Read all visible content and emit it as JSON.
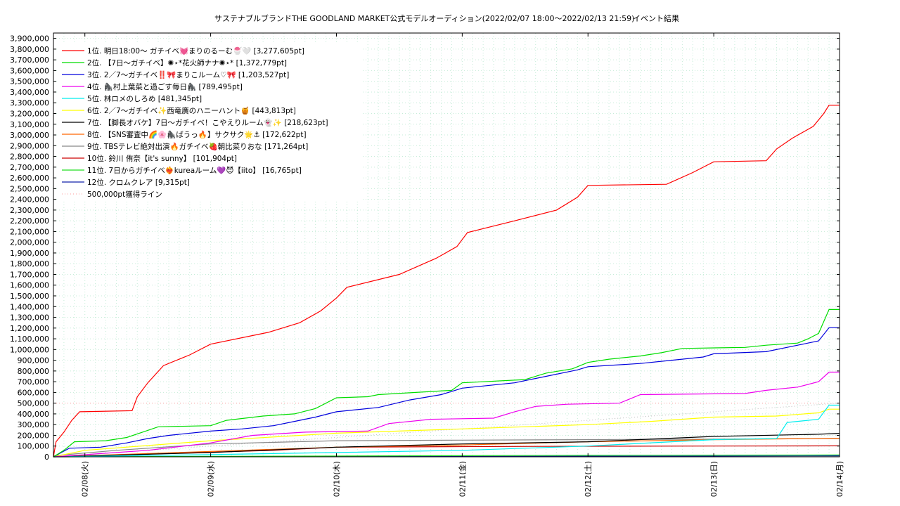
{
  "chart_data": {
    "type": "line",
    "title": "サステナブルブランドTHE GOODLAND MARKET公式モデルオーディション(2022/02/07 18:00〜2022/02/13 21:59)",
    "subtitle": "イベント結果",
    "ylim": [
      0,
      3950000
    ],
    "y_ticks": [
      "0",
      "100,000",
      "200,000",
      "300,000",
      "400,000",
      "500,000",
      "600,000",
      "700,000",
      "800,000",
      "900,000",
      "1,000,000",
      "1,100,000",
      "1,200,000",
      "1,300,000",
      "1,400,000",
      "1,500,000",
      "1,600,000",
      "1,700,000",
      "1,800,000",
      "1,900,000",
      "2,000,000",
      "2,100,000",
      "2,200,000",
      "2,300,000",
      "2,400,000",
      "2,500,000",
      "2,600,000",
      "2,700,000",
      "2,800,000",
      "2,900,000",
      "3,000,000",
      "3,100,000",
      "3,200,000",
      "3,300,000",
      "3,400,000",
      "3,500,000",
      "3,600,000",
      "3,700,000",
      "3,800,000",
      "3,900,000"
    ],
    "x_range": [
      "2022-02-07T18:00",
      "2022-02-14T00:00"
    ],
    "x_ticks": [
      {
        "at": "2022-02-08T00:00",
        "label": "02/08(火)"
      },
      {
        "at": "2022-02-09T00:00",
        "label": "02/09(水)"
      },
      {
        "at": "2022-02-10T00:00",
        "label": "02/10(木)"
      },
      {
        "at": "2022-02-11T00:00",
        "label": "02/11(金)"
      },
      {
        "at": "2022-02-12T00:00",
        "label": "02/12(土)"
      },
      {
        "at": "2022-02-13T00:00",
        "label": "02/13(日)"
      },
      {
        "at": "2022-02-14T00:00",
        "label": "02/14(月)"
      }
    ],
    "grid": true,
    "legend_position": "top-left",
    "series": [
      {
        "name": "1位. 明日18:00〜 ガチイベ💓まりのるーむ🍧🤍 [3,277,605pt]",
        "color": "#ff0000",
        "points": [
          [
            "2022-02-07T18:00",
            0
          ],
          [
            "2022-02-07T18:30",
            140000
          ],
          [
            "2022-02-07T20:00",
            230000
          ],
          [
            "2022-02-07T21:30",
            340000
          ],
          [
            "2022-02-07T23:00",
            420000
          ],
          [
            "2022-02-08T09:00",
            430000
          ],
          [
            "2022-02-08T10:00",
            560000
          ],
          [
            "2022-02-08T12:00",
            690000
          ],
          [
            "2022-02-08T15:00",
            850000
          ],
          [
            "2022-02-08T20:00",
            950000
          ],
          [
            "2022-02-09T00:00",
            1050000
          ],
          [
            "2022-02-09T11:00",
            1160000
          ],
          [
            "2022-02-09T17:00",
            1250000
          ],
          [
            "2022-02-09T21:00",
            1360000
          ],
          [
            "2022-02-10T00:00",
            1480000
          ],
          [
            "2022-02-10T02:00",
            1580000
          ],
          [
            "2022-02-10T12:00",
            1700000
          ],
          [
            "2022-02-10T19:00",
            1850000
          ],
          [
            "2022-02-10T23:00",
            1960000
          ],
          [
            "2022-02-11T01:00",
            2090000
          ],
          [
            "2022-02-11T10:00",
            2200000
          ],
          [
            "2022-02-11T18:00",
            2300000
          ],
          [
            "2022-02-11T22:00",
            2420000
          ],
          [
            "2022-02-12T00:00",
            2530000
          ],
          [
            "2022-02-12T15:00",
            2540000
          ],
          [
            "2022-02-12T20:00",
            2650000
          ],
          [
            "2022-02-13T00:00",
            2750000
          ],
          [
            "2022-02-13T10:00",
            2760000
          ],
          [
            "2022-02-13T12:00",
            2870000
          ],
          [
            "2022-02-13T15:00",
            2970000
          ],
          [
            "2022-02-13T19:00",
            3080000
          ],
          [
            "2022-02-13T21:00",
            3200000
          ],
          [
            "2022-02-13T22:00",
            3277605
          ],
          [
            "2022-02-14T00:00",
            3277605
          ]
        ]
      },
      {
        "name": "2位. 【7日〜ガチイベ】✺⋆*花火師ナナ✺⋆* [1,372,779pt]",
        "color": "#00dd00",
        "points": [
          [
            "2022-02-07T18:00",
            0
          ],
          [
            "2022-02-07T20:00",
            60000
          ],
          [
            "2022-02-07T22:00",
            140000
          ],
          [
            "2022-02-08T04:00",
            150000
          ],
          [
            "2022-02-08T08:00",
            180000
          ],
          [
            "2022-02-08T11:00",
            230000
          ],
          [
            "2022-02-08T14:00",
            280000
          ],
          [
            "2022-02-09T00:00",
            290000
          ],
          [
            "2022-02-09T03:00",
            340000
          ],
          [
            "2022-02-09T10:00",
            380000
          ],
          [
            "2022-02-09T16:00",
            400000
          ],
          [
            "2022-02-09T20:00",
            450000
          ],
          [
            "2022-02-10T00:00",
            550000
          ],
          [
            "2022-02-10T06:00",
            560000
          ],
          [
            "2022-02-10T08:00",
            580000
          ],
          [
            "2022-02-10T22:00",
            620000
          ],
          [
            "2022-02-11T00:00",
            690000
          ],
          [
            "2022-02-11T12:00",
            720000
          ],
          [
            "2022-02-11T16:00",
            780000
          ],
          [
            "2022-02-11T21:00",
            820000
          ],
          [
            "2022-02-12T00:00",
            880000
          ],
          [
            "2022-02-12T04:00",
            910000
          ],
          [
            "2022-02-12T10:00",
            940000
          ],
          [
            "2022-02-12T14:00",
            970000
          ],
          [
            "2022-02-12T18:00",
            1010000
          ],
          [
            "2022-02-13T06:00",
            1020000
          ],
          [
            "2022-02-13T10:00",
            1040000
          ],
          [
            "2022-02-13T16:00",
            1060000
          ],
          [
            "2022-02-13T18:00",
            1100000
          ],
          [
            "2022-02-13T20:00",
            1150000
          ],
          [
            "2022-02-13T22:00",
            1372779
          ],
          [
            "2022-02-14T00:00",
            1372779
          ]
        ]
      },
      {
        "name": "3位. 2／7〜ガチイベ‼️🎀まりこルーム♡🎀 [1,203,527pt]",
        "color": "#0000dd",
        "points": [
          [
            "2022-02-07T18:00",
            0
          ],
          [
            "2022-02-07T21:00",
            80000
          ],
          [
            "2022-02-08T03:00",
            90000
          ],
          [
            "2022-02-08T08:00",
            130000
          ],
          [
            "2022-02-08T12:00",
            170000
          ],
          [
            "2022-02-08T16:00",
            200000
          ],
          [
            "2022-02-09T00:00",
            240000
          ],
          [
            "2022-02-09T06:00",
            260000
          ],
          [
            "2022-02-09T12:00",
            290000
          ],
          [
            "2022-02-09T16:00",
            330000
          ],
          [
            "2022-02-09T20:00",
            370000
          ],
          [
            "2022-02-10T00:00",
            420000
          ],
          [
            "2022-02-10T08:00",
            460000
          ],
          [
            "2022-02-10T14:00",
            530000
          ],
          [
            "2022-02-10T20:00",
            580000
          ],
          [
            "2022-02-11T00:00",
            640000
          ],
          [
            "2022-02-11T10:00",
            690000
          ],
          [
            "2022-02-11T16:00",
            750000
          ],
          [
            "2022-02-11T22:00",
            810000
          ],
          [
            "2022-02-12T00:00",
            840000
          ],
          [
            "2022-02-12T10:00",
            870000
          ],
          [
            "2022-02-12T16:00",
            900000
          ],
          [
            "2022-02-12T22:00",
            930000
          ],
          [
            "2022-02-13T00:00",
            960000
          ],
          [
            "2022-02-13T10:00",
            980000
          ],
          [
            "2022-02-13T16:00",
            1040000
          ],
          [
            "2022-02-13T20:00",
            1080000
          ],
          [
            "2022-02-13T22:00",
            1203527
          ],
          [
            "2022-02-14T00:00",
            1203527
          ]
        ]
      },
      {
        "name": "4位. 🦍村上葉菜と過ごす毎日🦍 [789,495pt]",
        "color": "#ee00ee",
        "points": [
          [
            "2022-02-07T18:00",
            0
          ],
          [
            "2022-02-08T12:00",
            60000
          ],
          [
            "2022-02-09T00:00",
            130000
          ],
          [
            "2022-02-09T08:00",
            200000
          ],
          [
            "2022-02-09T18:00",
            230000
          ],
          [
            "2022-02-10T06:00",
            240000
          ],
          [
            "2022-02-10T10:00",
            310000
          ],
          [
            "2022-02-10T18:00",
            350000
          ],
          [
            "2022-02-11T06:00",
            360000
          ],
          [
            "2022-02-11T10:00",
            420000
          ],
          [
            "2022-02-11T14:00",
            470000
          ],
          [
            "2022-02-11T20:00",
            490000
          ],
          [
            "2022-02-12T06:00",
            500000
          ],
          [
            "2022-02-12T10:00",
            580000
          ],
          [
            "2022-02-13T06:00",
            590000
          ],
          [
            "2022-02-13T10:00",
            620000
          ],
          [
            "2022-02-13T16:00",
            650000
          ],
          [
            "2022-02-13T20:00",
            700000
          ],
          [
            "2022-02-13T22:00",
            789495
          ],
          [
            "2022-02-14T00:00",
            789495
          ]
        ]
      },
      {
        "name": "5位. 林ロメのしろめ [481,345pt]",
        "color": "#00eeee",
        "points": [
          [
            "2022-02-07T18:00",
            0
          ],
          [
            "2022-02-09T00:00",
            20000
          ],
          [
            "2022-02-10T00:00",
            40000
          ],
          [
            "2022-02-11T00:00",
            60000
          ],
          [
            "2022-02-12T00:00",
            100000
          ],
          [
            "2022-02-13T00:00",
            160000
          ],
          [
            "2022-02-13T12:00",
            170000
          ],
          [
            "2022-02-13T14:00",
            320000
          ],
          [
            "2022-02-13T20:00",
            350000
          ],
          [
            "2022-02-13T22:00",
            481345
          ],
          [
            "2022-02-14T00:00",
            481345
          ]
        ]
      },
      {
        "name": "6位. 2／7〜ガチイベ✨西竜廣のハニーハント🍯 [443,813pt]",
        "color": "#ffff00",
        "points": [
          [
            "2022-02-07T18:00",
            0
          ],
          [
            "2022-02-08T00:00",
            60000
          ],
          [
            "2022-02-09T00:00",
            150000
          ],
          [
            "2022-02-10T00:00",
            220000
          ],
          [
            "2022-02-11T00:00",
            260000
          ],
          [
            "2022-02-12T00:00",
            300000
          ],
          [
            "2022-02-12T12:00",
            330000
          ],
          [
            "2022-02-13T00:00",
            370000
          ],
          [
            "2022-02-13T12:00",
            380000
          ],
          [
            "2022-02-13T20:00",
            410000
          ],
          [
            "2022-02-13T22:00",
            443813
          ],
          [
            "2022-02-14T00:00",
            443813
          ]
        ]
      },
      {
        "name": "7位. 【脚長オバケ】7日〜ガチイベ！こやえりルーム👻✨ [218,623pt]",
        "color": "#000000",
        "points": [
          [
            "2022-02-07T18:00",
            0
          ],
          [
            "2022-02-09T00:00",
            40000
          ],
          [
            "2022-02-10T00:00",
            90000
          ],
          [
            "2022-02-11T00:00",
            120000
          ],
          [
            "2022-02-12T00:00",
            140000
          ],
          [
            "2022-02-13T00:00",
            190000
          ],
          [
            "2022-02-13T20:00",
            210000
          ],
          [
            "2022-02-14T00:00",
            218623
          ]
        ]
      },
      {
        "name": "8位. 【SNS審査中🌈🌸🦍ばうっ🔥】サクサク🌟⚓ [172,622pt]",
        "color": "#ff6600",
        "points": [
          [
            "2022-02-07T18:00",
            0
          ],
          [
            "2022-02-08T12:00",
            30000
          ],
          [
            "2022-02-09T06:00",
            60000
          ],
          [
            "2022-02-10T00:00",
            90000
          ],
          [
            "2022-02-11T00:00",
            110000
          ],
          [
            "2022-02-12T00:00",
            140000
          ],
          [
            "2022-02-13T00:00",
            160000
          ],
          [
            "2022-02-14T00:00",
            172622
          ]
        ]
      },
      {
        "name": "9位. TBSテレビ絶対出演🔥ガチイベ🍓朝比菜りおな [171,264pt]",
        "color": "#888888",
        "points": [
          [
            "2022-02-07T18:00",
            10000
          ],
          [
            "2022-02-08T06:00",
            60000
          ],
          [
            "2022-02-09T00:00",
            120000
          ],
          [
            "2022-02-10T00:00",
            150000
          ],
          [
            "2022-02-11T00:00",
            155000
          ],
          [
            "2022-02-12T00:00",
            160000
          ],
          [
            "2022-02-13T00:00",
            165000
          ],
          [
            "2022-02-14T00:00",
            171264
          ]
        ]
      },
      {
        "name": "10位. 鈴川 侑奈【it's sunny】 [101,904pt]",
        "color": "#cc0000",
        "points": [
          [
            "2022-02-07T18:00",
            0
          ],
          [
            "2022-02-09T12:00",
            60000
          ],
          [
            "2022-02-10T00:00",
            90000
          ],
          [
            "2022-02-11T00:00",
            95000
          ],
          [
            "2022-02-12T00:00",
            98000
          ],
          [
            "2022-02-14T00:00",
            101904
          ]
        ]
      },
      {
        "name": "11位. 7日からガチイベ❤️‍🔥kureaルーム💜😈【iito】 [16,765pt]",
        "color": "#22dd22",
        "points": [
          [
            "2022-02-07T18:00",
            0
          ],
          [
            "2022-02-10T00:00",
            8000
          ],
          [
            "2022-02-12T00:00",
            14000
          ],
          [
            "2022-02-14T00:00",
            16765
          ]
        ]
      },
      {
        "name": "12位. クロムクレア [9,315pt]",
        "color": "#1122aa",
        "points": [
          [
            "2022-02-07T18:00",
            0
          ],
          [
            "2022-02-11T00:00",
            4000
          ],
          [
            "2022-02-13T00:00",
            7000
          ],
          [
            "2022-02-14T00:00",
            9315
          ]
        ]
      }
    ],
    "reference_line": {
      "name": "500,000pt獲得ライン",
      "value": 500000,
      "color": "#ff9999"
    },
    "pace_line": {
      "from": [
        "2022-02-07T18:00",
        0
      ],
      "to": [
        "2022-02-14T00:00",
        500000
      ],
      "color": "#bbbbbb"
    }
  }
}
